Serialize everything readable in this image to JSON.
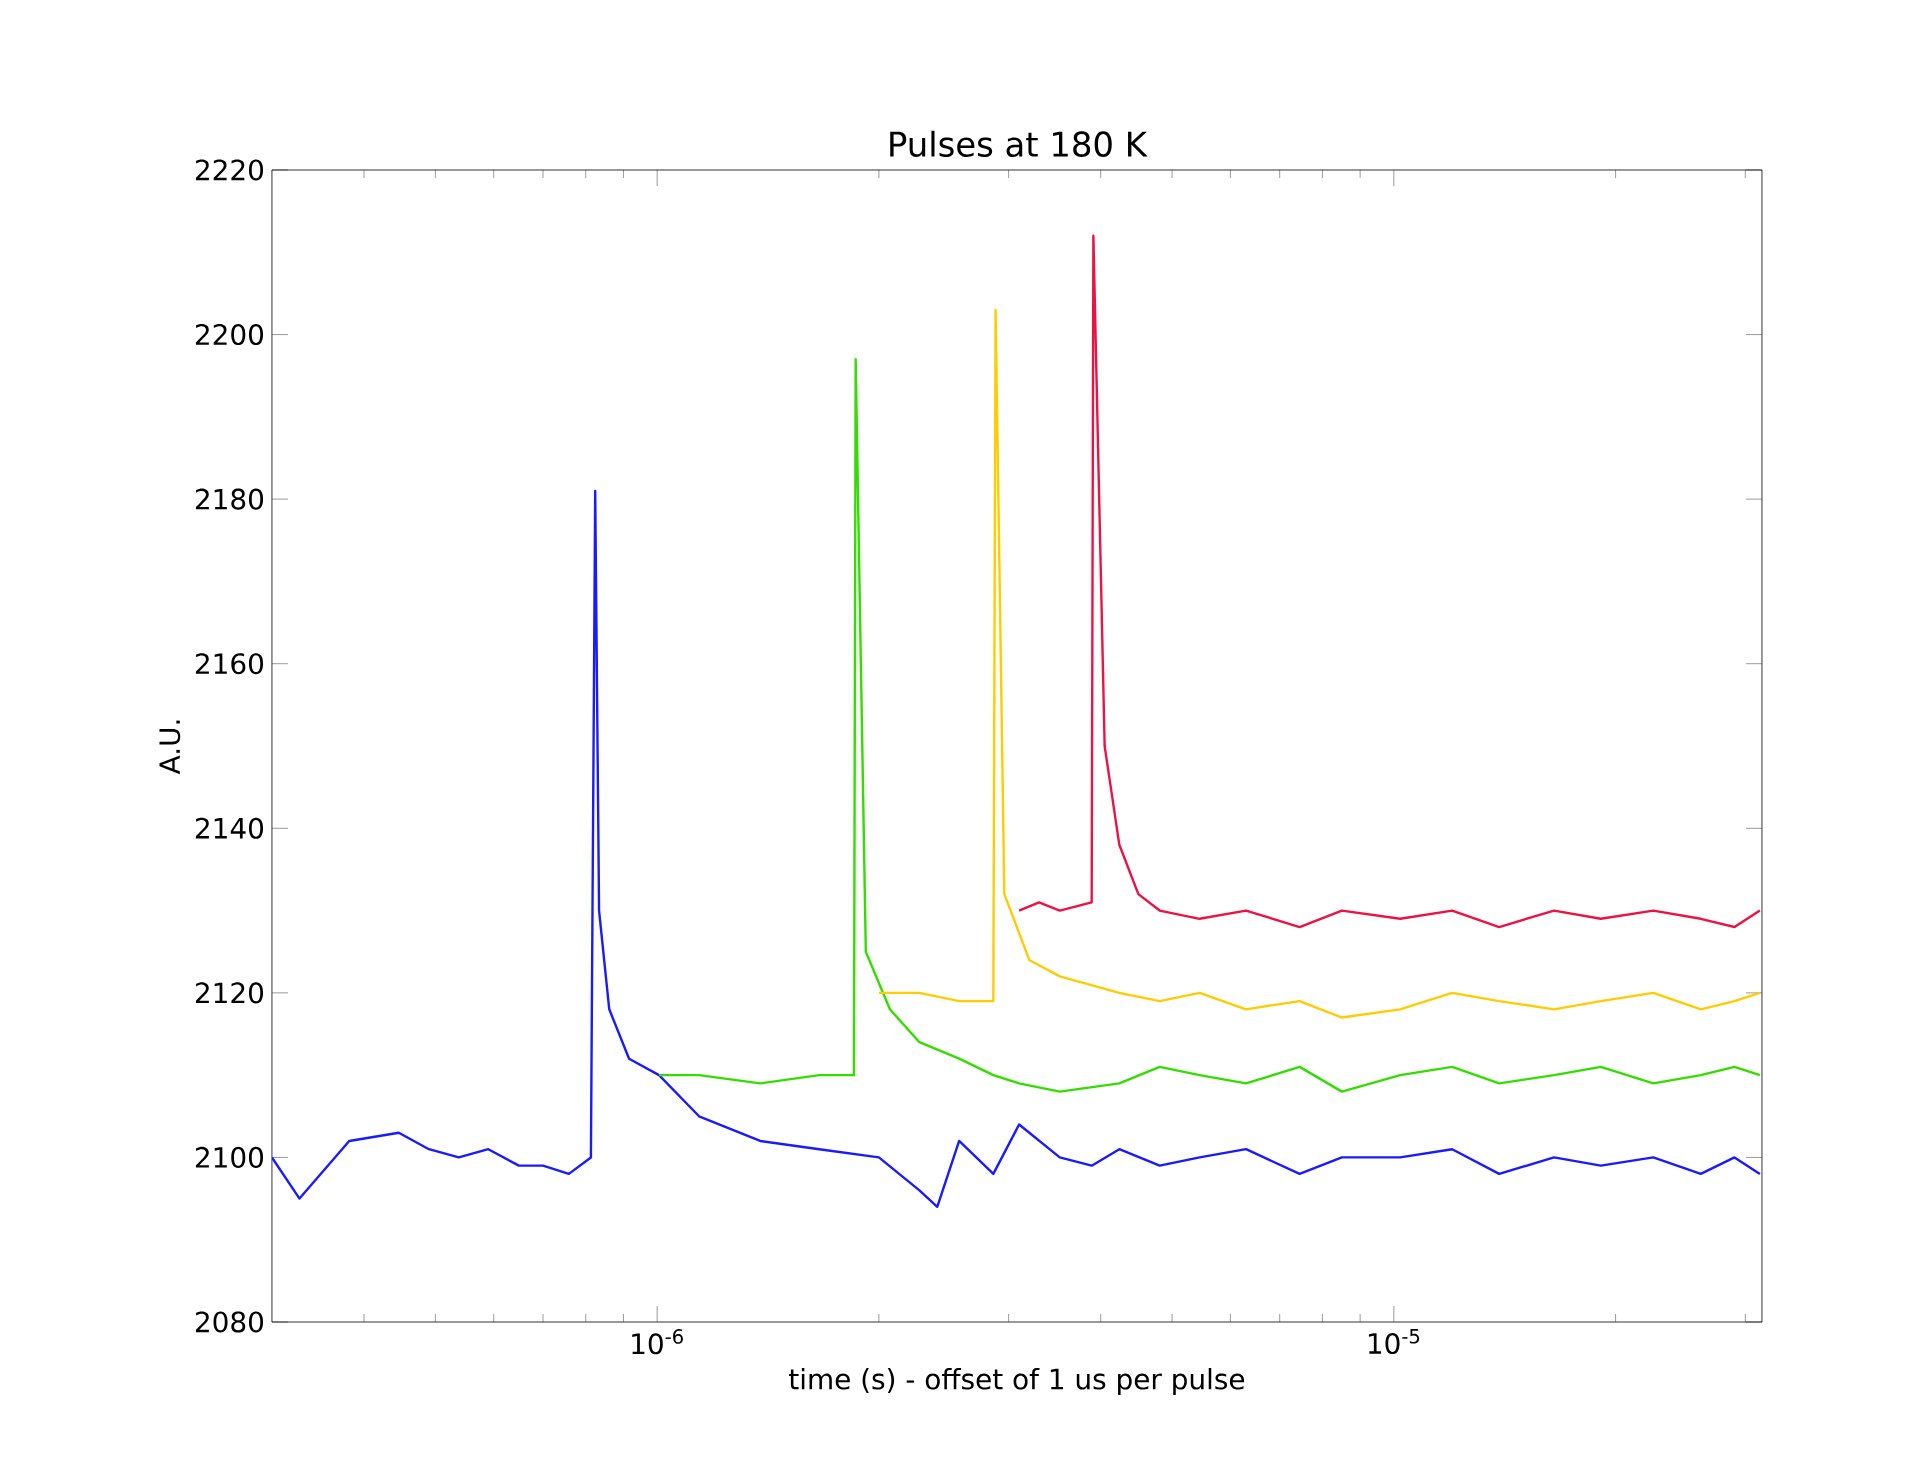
{
  "chart_data": {
    "type": "line",
    "title": "Pulses at 180 K",
    "xlabel": "time (s) - offset of 1 us per pulse",
    "ylabel": "A.U.",
    "log": "x",
    "xlim": [
      3e-07,
      3.16e-05
    ],
    "ylim": [
      2080,
      2220
    ],
    "xticks": [
      {
        "value": 4e-07,
        "label": null
      },
      {
        "value": 5e-07,
        "label": null
      },
      {
        "value": 6e-07,
        "label": null
      },
      {
        "value": 7e-07,
        "label": null
      },
      {
        "value": 8e-07,
        "label": null
      },
      {
        "value": 9e-07,
        "label": null
      },
      {
        "value": 1e-06,
        "label": "10$^{-6}$"
      },
      {
        "value": 2e-06,
        "label": null
      },
      {
        "value": 3e-06,
        "label": null
      },
      {
        "value": 4e-06,
        "label": null
      },
      {
        "value": 5e-06,
        "label": null
      },
      {
        "value": 6e-06,
        "label": null
      },
      {
        "value": 7e-06,
        "label": null
      },
      {
        "value": 8e-06,
        "label": null
      },
      {
        "value": 9e-06,
        "label": null
      },
      {
        "value": 1e-05,
        "label": "10$^{-5}$"
      },
      {
        "value": 2e-05,
        "label": null
      },
      {
        "value": 3e-05,
        "label": null
      }
    ],
    "yticks": [
      2080,
      2100,
      2120,
      2140,
      2160,
      2180,
      2200,
      2220
    ],
    "series": [
      {
        "color": "#1a1aff",
        "x": [
          3e-07,
          3.27e-07,
          3.82e-07,
          4.46e-07,
          4.9e-07,
          5.38e-07,
          5.9e-07,
          6.49e-07,
          7e-07,
          7.59e-07,
          8.13e-07,
          8.24e-07,
          8.34e-07,
          8.61e-07,
          9.16e-07,
          1.006e-06,
          1.14e-06,
          1.38e-06,
          1.66e-06,
          2e-06,
          2.27e-06,
          2.4e-06,
          2.57e-06,
          2.86e-06,
          3.1e-06,
          3.52e-06,
          3.89e-06,
          4.24e-06,
          4.81e-06,
          5.45e-06,
          6.3e-06,
          7.45e-06,
          8.5e-06,
          1.02e-05,
          1.2e-05,
          1.39e-05,
          1.65e-05,
          1.91e-05,
          2.25e-05,
          2.61e-05,
          2.9e-05,
          3.14e-05
        ],
        "values": [
          2100,
          2095,
          2102,
          2103,
          2101,
          2100,
          2101,
          2099,
          2099,
          2098,
          2100,
          2181,
          2130,
          2118,
          2112,
          2110,
          2105,
          2102,
          2101,
          2100,
          2096,
          2094,
          2102,
          2098,
          2104,
          2100,
          2099,
          2101,
          2099,
          2100,
          2101,
          2098,
          2100,
          2100,
          2101,
          2098,
          2100,
          2099,
          2100,
          2098,
          2100,
          2098
        ]
      },
      {
        "color": "#33dd00",
        "x": [
          1.006e-06,
          1.14e-06,
          1.38e-06,
          1.66e-06,
          1.85e-06,
          1.86e-06,
          1.92e-06,
          2.07e-06,
          2.27e-06,
          2.57e-06,
          2.86e-06,
          3.1e-06,
          3.52e-06,
          4.24e-06,
          4.81e-06,
          5.45e-06,
          6.3e-06,
          7.45e-06,
          8.5e-06,
          1.02e-05,
          1.2e-05,
          1.39e-05,
          1.65e-05,
          1.91e-05,
          2.25e-05,
          2.61e-05,
          2.9e-05,
          3.14e-05
        ],
        "values": [
          2110,
          2110,
          2109,
          2110,
          2110,
          2197,
          2125,
          2118,
          2114,
          2112,
          2110,
          2109,
          2108,
          2109,
          2111,
          2110,
          2109,
          2111,
          2108,
          2110,
          2111,
          2109,
          2110,
          2111,
          2109,
          2110,
          2111,
          2110
        ]
      },
      {
        "color": "#ffcc00",
        "x": [
          2e-06,
          2.27e-06,
          2.57e-06,
          2.86e-06,
          2.88e-06,
          2.96e-06,
          3.2e-06,
          3.52e-06,
          4.24e-06,
          4.81e-06,
          5.45e-06,
          6.3e-06,
          7.45e-06,
          8.5e-06,
          1.02e-05,
          1.2e-05,
          1.39e-05,
          1.65e-05,
          1.91e-05,
          2.25e-05,
          2.61e-05,
          2.9e-05,
          3.14e-05
        ],
        "values": [
          2120,
          2120,
          2119,
          2119,
          2203,
          2132,
          2124,
          2122,
          2120,
          2119,
          2120,
          2118,
          2119,
          2117,
          2118,
          2120,
          2119,
          2118,
          2119,
          2120,
          2118,
          2119,
          2120
        ]
      },
      {
        "color": "#ee1144",
        "x": [
          3.1e-06,
          3.3e-06,
          3.52e-06,
          3.89e-06,
          3.91e-06,
          4.05e-06,
          4.24e-06,
          4.5e-06,
          4.81e-06,
          5.45e-06,
          6.3e-06,
          7.45e-06,
          8.5e-06,
          1.02e-05,
          1.2e-05,
          1.39e-05,
          1.65e-05,
          1.91e-05,
          2.25e-05,
          2.61e-05,
          2.9e-05,
          3.14e-05
        ],
        "values": [
          2130,
          2131,
          2130,
          2131,
          2212,
          2150,
          2138,
          2132,
          2130,
          2129,
          2130,
          2128,
          2130,
          2129,
          2130,
          2128,
          2130,
          2129,
          2130,
          2129,
          2128,
          2130
        ]
      }
    ]
  }
}
